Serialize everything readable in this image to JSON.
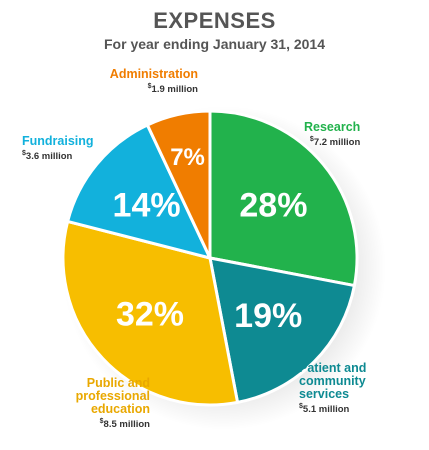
{
  "title": "EXPENSES",
  "subtitle": "For year ending January 31, 2014",
  "colors": {
    "research": "#22b24c",
    "patient": "#0e8a92",
    "public": "#f7be00",
    "fundraising": "#12b1dc",
    "administration": "#f07d00"
  },
  "chart_data": {
    "type": "pie",
    "title": "EXPENSES",
    "subtitle": "For year ending January 31, 2014",
    "slices": [
      {
        "key": "research",
        "name": "Research",
        "value": 28,
        "label": "28%",
        "amount_symbol": "$",
        "amount": "7.2 million"
      },
      {
        "key": "patient",
        "name": "Patient and community services",
        "name_lines": [
          "Patient and",
          "community",
          "services"
        ],
        "value": 19,
        "label": "19%",
        "amount_symbol": "$",
        "amount": "5.1 million"
      },
      {
        "key": "public",
        "name": "Public and professional education",
        "name_lines": [
          "Public and",
          "professional",
          "education"
        ],
        "value": 32,
        "label": "32%",
        "amount_symbol": "$",
        "amount": "8.5 million"
      },
      {
        "key": "fundraising",
        "name": "Fundraising",
        "value": 14,
        "label": "14%",
        "amount_symbol": "$",
        "amount": "3.6 million"
      },
      {
        "key": "administration",
        "name": "Administration",
        "value": 7,
        "label": "7%",
        "amount_symbol": "$",
        "amount": "1.9 million"
      }
    ]
  }
}
